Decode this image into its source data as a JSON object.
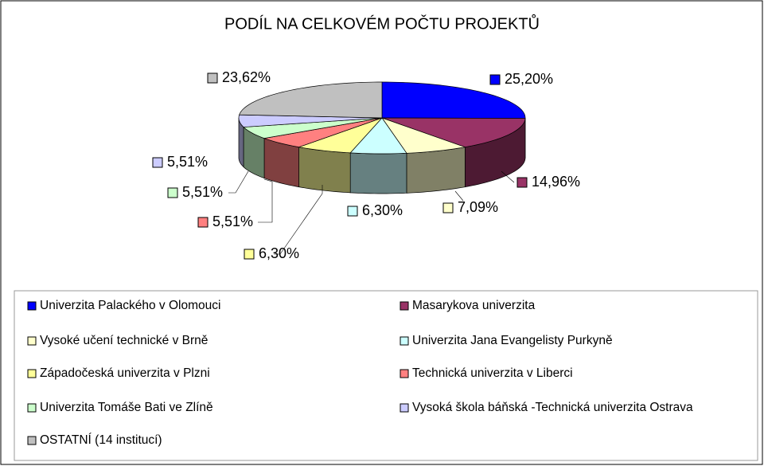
{
  "chart_data": {
    "type": "pie3d",
    "title": "PODÍL NA CELKOVÉM POČTU PROJEKTŮ",
    "categories": [
      "Univerzita Palackého v Olomouci",
      "Masarykova univerzita",
      "Vysoké učení technické v Brně",
      "Univerzita Jana Evangelisty Purkyně",
      "Západočeská univerzita v Plzni",
      "Technická univerzita v Liberci",
      "Univerzita Tomáše Bati ve Zlíně",
      "Vysoká škola báňská -Technická univerzita Ostrava",
      "OSTATNÍ (14 institucí)"
    ],
    "values": [
      25.2,
      14.96,
      7.09,
      6.3,
      6.3,
      5.51,
      5.51,
      5.51,
      23.62
    ],
    "value_labels": [
      "25,20%",
      "14,96%",
      "7,09%",
      "6,30%",
      "6,30%",
      "5,51%",
      "5,51%",
      "5,51%",
      "23,62%"
    ],
    "colors": [
      "#0000ff",
      "#993366",
      "#ffffcc",
      "#ccffff",
      "#ffff99",
      "#ff8080",
      "#ccffcc",
      "#ccccff",
      "#c0c0c0"
    ],
    "legend": "bottom"
  }
}
